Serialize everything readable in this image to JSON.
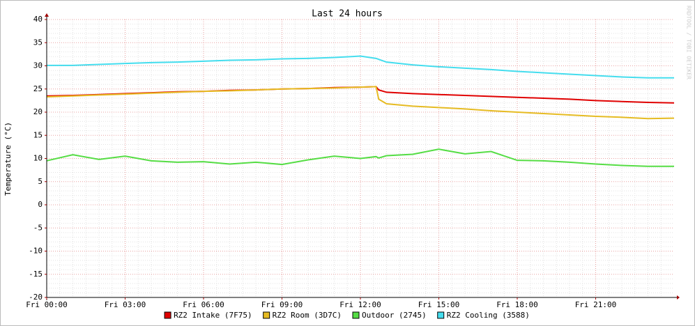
{
  "chart_data": {
    "type": "line",
    "title": "Last 24 hours",
    "y_label": "Temperature (°C)",
    "watermark": "RRDTOOL / TOBI OETIKER",
    "x": [
      0,
      1,
      2,
      3,
      4,
      5,
      6,
      7,
      8,
      9,
      10,
      11,
      12,
      12.6,
      12.7,
      13,
      14,
      15,
      16,
      17,
      18,
      19,
      20,
      21,
      22,
      23,
      24
    ],
    "xlim": [
      0,
      24
    ],
    "xticks": [
      {
        "value": 0,
        "label": "Fri 00:00"
      },
      {
        "value": 3,
        "label": "Fri 03:00"
      },
      {
        "value": 6,
        "label": "Fri 06:00"
      },
      {
        "value": 9,
        "label": "Fri 09:00"
      },
      {
        "value": 12,
        "label": "Fri 12:00"
      },
      {
        "value": 15,
        "label": "Fri 15:00"
      },
      {
        "value": 18,
        "label": "Fri 18:00"
      },
      {
        "value": 21,
        "label": "Fri 21:00"
      }
    ],
    "ylim": [
      -20,
      40
    ],
    "yticks": [
      -20,
      -15,
      -10,
      -5,
      0,
      5,
      10,
      15,
      20,
      25,
      30,
      35,
      40
    ],
    "grid": true,
    "legend": "bottom",
    "series": [
      {
        "name": "RZ2 Intake (7F75)",
        "color": "#e00000",
        "values": [
          23.5,
          23.6,
          23.8,
          24.0,
          24.2,
          24.4,
          24.5,
          24.7,
          24.8,
          25.0,
          25.1,
          25.3,
          25.4,
          25.5,
          24.8,
          24.3,
          24.0,
          23.8,
          23.6,
          23.4,
          23.2,
          23.0,
          22.8,
          22.5,
          22.3,
          22.1,
          22.0
        ]
      },
      {
        "name": "RZ2 Room (3D7C)",
        "color": "#e6bb22",
        "values": [
          23.3,
          23.5,
          23.7,
          23.9,
          24.1,
          24.3,
          24.5,
          24.6,
          24.8,
          25.0,
          25.1,
          25.2,
          25.4,
          25.5,
          22.8,
          21.8,
          21.3,
          21.0,
          20.7,
          20.3,
          20.0,
          19.7,
          19.4,
          19.1,
          18.9,
          18.6,
          18.7
        ]
      },
      {
        "name": "Outdoor (2745)",
        "color": "#55dd44",
        "values": [
          9.5,
          10.8,
          9.8,
          10.5,
          9.5,
          9.2,
          9.3,
          8.8,
          9.2,
          8.7,
          9.7,
          10.5,
          10.0,
          10.4,
          10.1,
          10.6,
          10.9,
          12.0,
          11.0,
          11.5,
          9.6,
          9.5,
          9.2,
          8.8,
          8.5,
          8.3,
          8.3
        ]
      },
      {
        "name": "RZ2 Cooling (3588)",
        "color": "#44ddee",
        "values": [
          30.1,
          30.1,
          30.3,
          30.5,
          30.7,
          30.8,
          31.0,
          31.2,
          31.3,
          31.5,
          31.6,
          31.8,
          32.1,
          31.6,
          31.4,
          30.8,
          30.2,
          29.8,
          29.5,
          29.2,
          28.8,
          28.5,
          28.2,
          27.9,
          27.6,
          27.4,
          27.4
        ]
      }
    ]
  }
}
